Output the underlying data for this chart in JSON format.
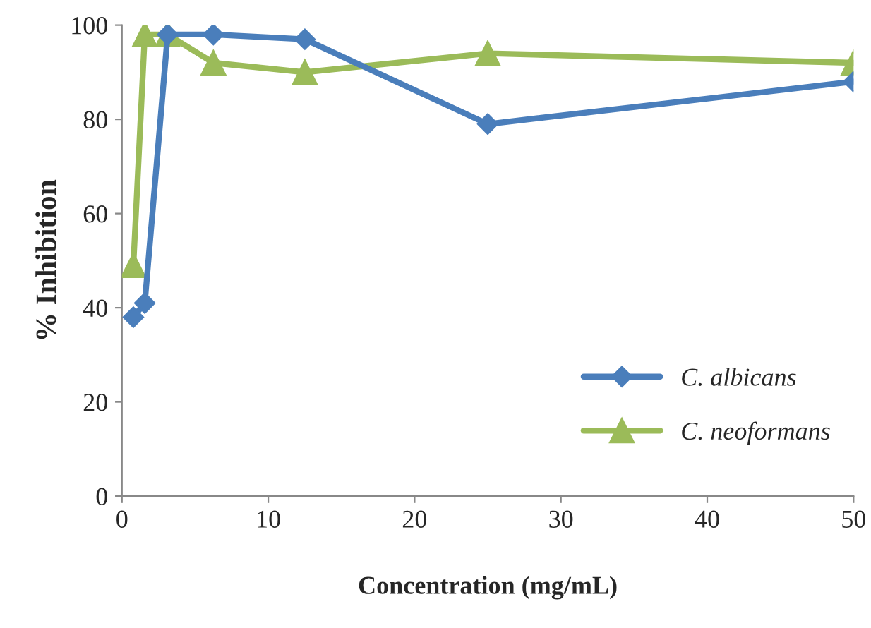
{
  "chart_data": {
    "type": "line",
    "xlabel": "Concentration (mg/mL)",
    "ylabel": "% Inhibition",
    "x": [
      0.78,
      1.56,
      3.125,
      6.25,
      12.5,
      25,
      50
    ],
    "series": [
      {
        "name": "C. albicans",
        "color": "#4a7ebb",
        "marker": "diamond",
        "values": [
          38,
          41,
          98,
          98,
          97,
          79,
          88
        ]
      },
      {
        "name": "C. neoformans",
        "color": "#9bbb59",
        "marker": "triangle",
        "values": [
          49,
          98,
          98,
          92,
          90,
          94,
          92
        ]
      }
    ],
    "xlim": [
      0,
      50
    ],
    "xticks": [
      0,
      10,
      20,
      30,
      40,
      50
    ],
    "ylim": [
      0,
      100
    ],
    "yticks": [
      0,
      20,
      40,
      60,
      80,
      100
    ],
    "grid": false,
    "legend": "bottom right",
    "line_style": "solid"
  }
}
